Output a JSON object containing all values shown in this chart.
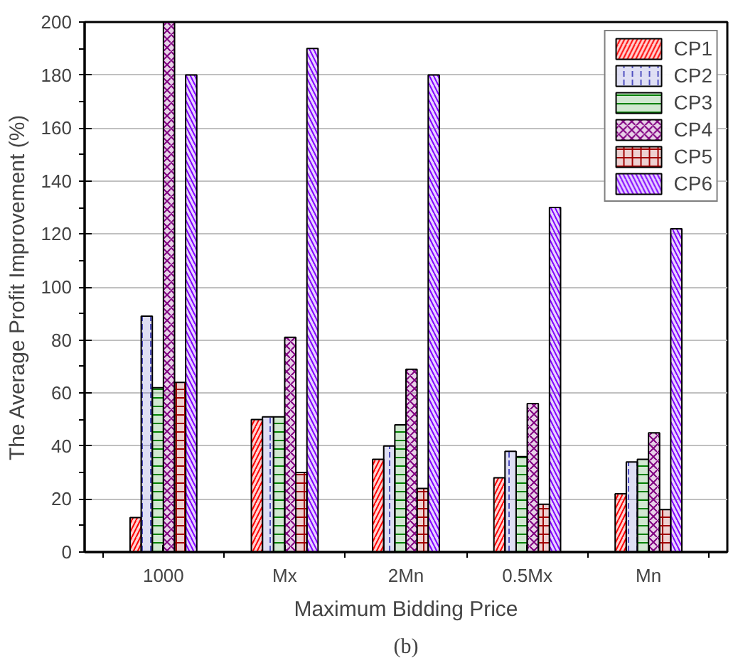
{
  "chart_data": {
    "type": "bar",
    "xlabel": "Maximum Bidding Price",
    "ylabel": "The Average Profit Improvement (%)",
    "categories": [
      "1000",
      "Mx",
      "2Mn",
      "0.5Mx",
      "Mn"
    ],
    "series": [
      {
        "name": "CP1",
        "color": "#ff0000",
        "values": [
          13,
          50,
          35,
          28,
          22
        ]
      },
      {
        "name": "CP2",
        "color": "#5050c0",
        "values": [
          89,
          51,
          40,
          38,
          34
        ]
      },
      {
        "name": "CP3",
        "color": "#008000",
        "values": [
          62,
          51,
          48,
          36,
          35
        ]
      },
      {
        "name": "CP4",
        "color": "#800080",
        "values": [
          200,
          81,
          69,
          56,
          45
        ]
      },
      {
        "name": "CP5",
        "color": "#a00000",
        "values": [
          64,
          30,
          24,
          18,
          16
        ]
      },
      {
        "name": "CP6",
        "color": "#8000ff",
        "values": [
          180,
          190,
          180,
          130,
          122
        ]
      }
    ],
    "ylim": [
      0,
      200
    ],
    "yticks": [
      0,
      20,
      40,
      60,
      80,
      100,
      120,
      140,
      160,
      180,
      200
    ],
    "grid": "y",
    "legend": "top right",
    "annotations": [
      "(b)"
    ]
  }
}
